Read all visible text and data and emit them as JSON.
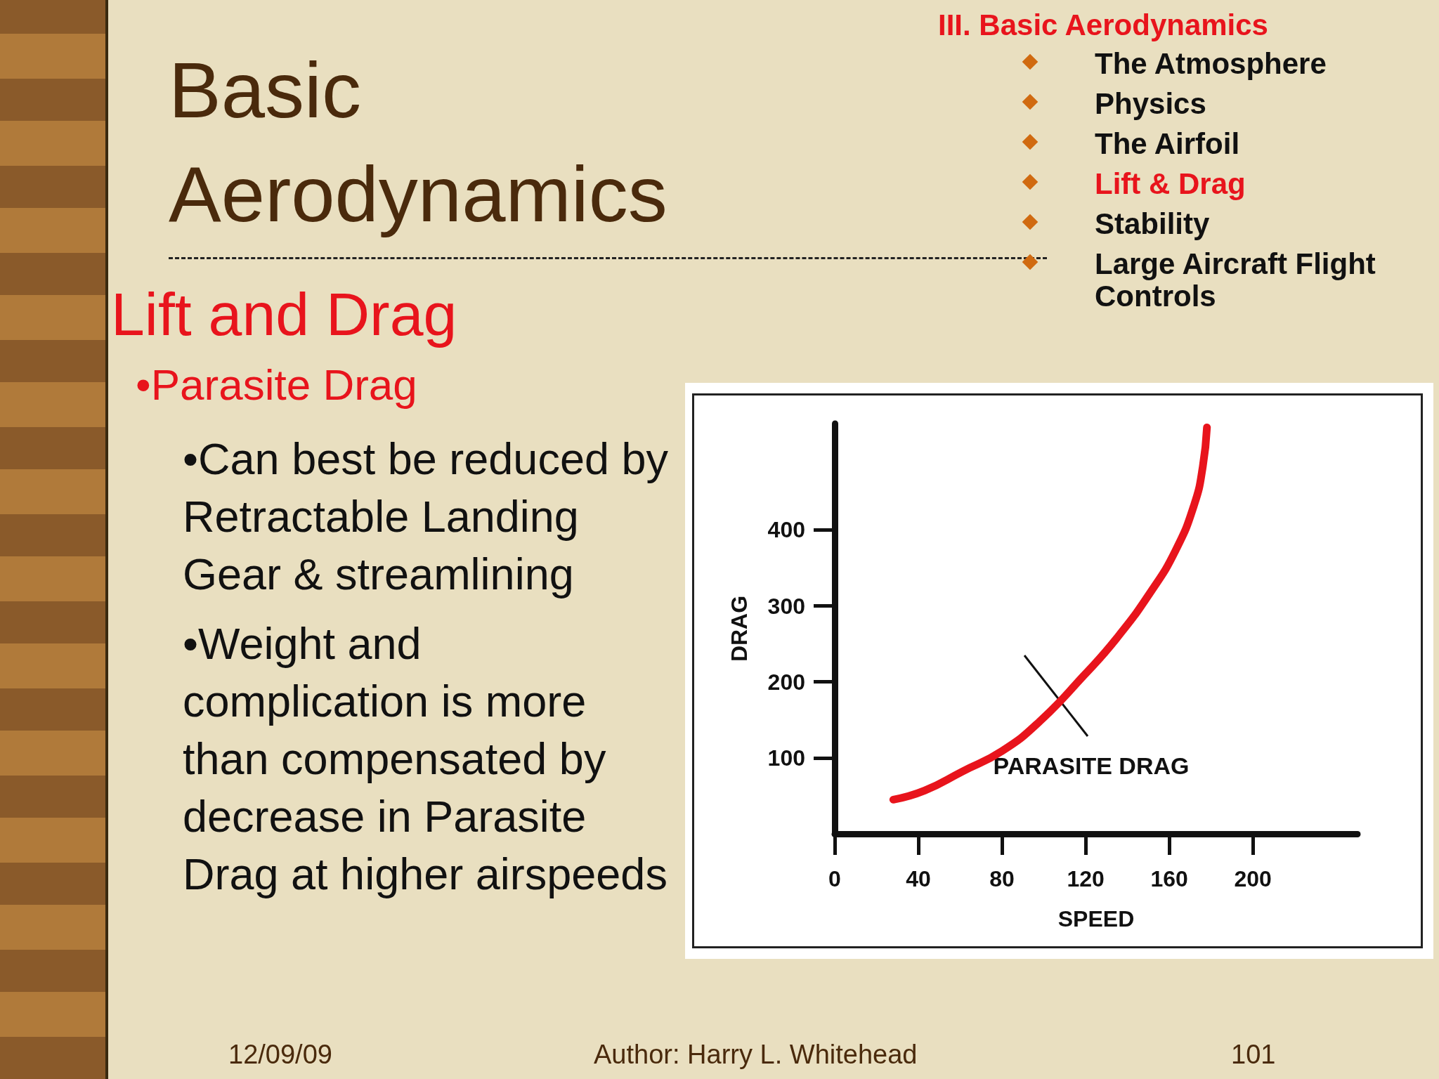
{
  "chart_data": {
    "type": "line",
    "title": "Basic Aerodynamics",
    "subtitle": "Lift and Drag",
    "xlabel": "SPEED",
    "ylabel": "DRAG",
    "x": [
      28,
      43,
      61,
      80,
      98,
      119,
      135,
      151,
      163,
      172,
      176,
      178
    ],
    "series": [
      {
        "color": "#e8141c",
        "values": [
          45,
          57,
          82,
          109,
          148,
          208,
          258,
          318,
          373,
          434,
          483,
          535
        ]
      }
    ],
    "xlim": [
      0,
      250
    ],
    "ylim": [
      0,
      540
    ],
    "xticks": [
      0,
      40,
      80,
      120,
      160,
      200
    ],
    "yticks": [
      100,
      200,
      300,
      400
    ],
    "grid": false,
    "marker": "none",
    "line_style": "solid",
    "annotations": [
      "III. Basic Aerodynamics",
      "The Atmosphere",
      "Physics",
      "The Airfoil",
      "Lift & Drag",
      "Stability",
      "Large Aircraft Flight Controls",
      "•Parasite Drag",
      "•Can best be reduced by Retractable Landing Gear & streamlining",
      "•Weight and complication is more than compensated by decrease in Parasite Drag at higher airspeeds",
      "12/09/09",
      "Author:  Harry L. Whitehead",
      "101",
      "PARASITE DRAG"
    ]
  }
}
